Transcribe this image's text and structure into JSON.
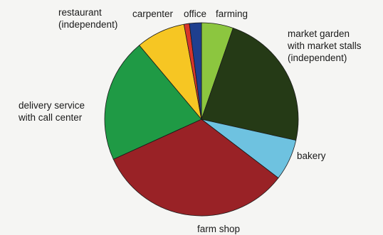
{
  "chart_data": {
    "type": "pie",
    "slices": [
      {
        "label": [
          "farming"
        ],
        "value": 5.3,
        "color": "#8cc63f"
      },
      {
        "label": [
          "market garden",
          "with market stalls",
          "(independent)"
        ],
        "value": 23.2,
        "color": "#253a16"
      },
      {
        "label": [
          "bakery"
        ],
        "value": 6.9,
        "color": "#6ec2e0"
      },
      {
        "label": [
          "farm shop"
        ],
        "value": 32.8,
        "color": "#992226"
      },
      {
        "label": [
          "delivery service",
          "with call center"
        ],
        "value": 20.7,
        "color": "#1f9a45"
      },
      {
        "label": [
          "restaurant",
          "(independent)"
        ],
        "value": 8.2,
        "color": "#f6c623"
      },
      {
        "label": [
          "carpenter"
        ],
        "value": 0.9,
        "color": "#d8352a"
      },
      {
        "label": [
          "office"
        ],
        "value": 2.0,
        "color": "#1f3f8e"
      }
    ]
  }
}
